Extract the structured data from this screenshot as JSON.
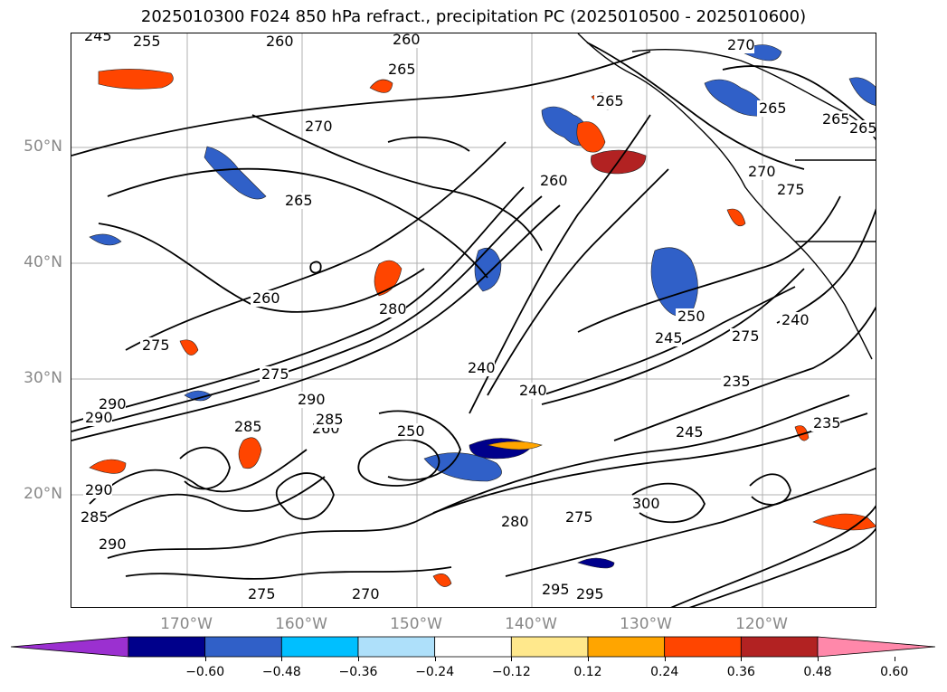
{
  "title": "2025010300 F024 850 hPa refract., precipitation PC (2025010500 - 2025010600)",
  "map": {
    "lat_labels": [
      "50°N",
      "40°N",
      "30°N",
      "20°N"
    ],
    "lon_labels": [
      "170°W",
      "160°W",
      "150°W",
      "140°W",
      "130°W",
      "120°W"
    ],
    "contour_labels": [
      "245",
      "255",
      "260",
      "260",
      "265",
      "270",
      "265",
      "265",
      "265",
      "265",
      "270",
      "275",
      "270",
      "260",
      "265",
      "260",
      "275",
      "280",
      "275",
      "290",
      "240",
      "240",
      "245",
      "250",
      "275",
      "235",
      "240",
      "235",
      "245",
      "285",
      "260",
      "250",
      "290",
      "285",
      "275",
      "280",
      "295",
      "290",
      "285",
      "275",
      "270",
      "290",
      "295",
      "300",
      "290"
    ],
    "grid": true
  },
  "colorbar": {
    "ticks": [
      "−0.60",
      "−0.48",
      "−0.36",
      "−0.24",
      "−0.12",
      "0.12",
      "0.24",
      "0.36",
      "0.48",
      "0.60"
    ],
    "colors": [
      "#9b30d0",
      "#00008b",
      "#3060c8",
      "#00bfff",
      "#aee0fa",
      "#ffffff",
      "#ffe88c",
      "#ffa500",
      "#ff4500",
      "#b22222",
      "#ff88aa"
    ]
  }
}
